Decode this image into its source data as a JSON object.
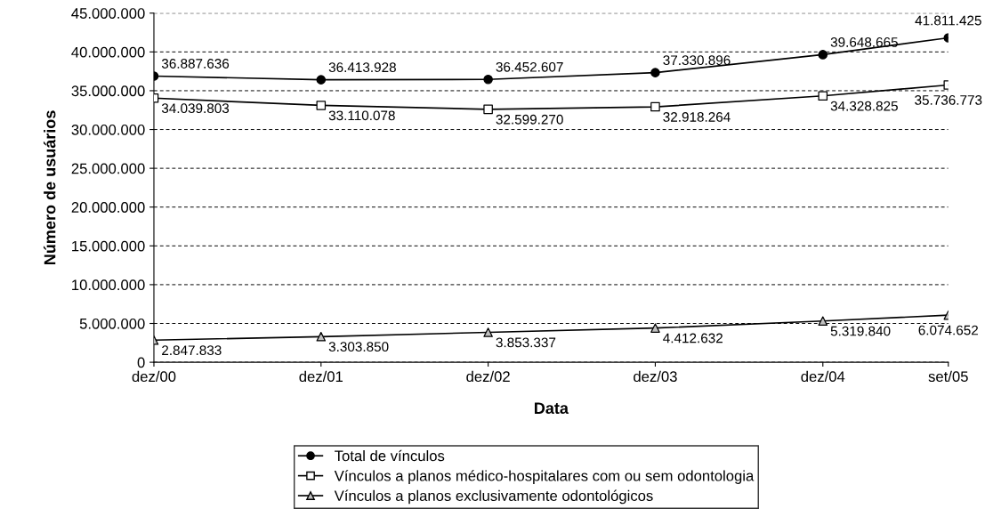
{
  "chart_data": {
    "type": "line",
    "xlabel": "Data",
    "ylabel": "Número de usuários",
    "x": [
      "2000-12",
      "2001-12",
      "2002-12",
      "2003-12",
      "2004-12",
      "2005-09"
    ],
    "xlim": [
      "2000-12",
      "2005-09"
    ],
    "xticks": [
      {
        "value": "2000-12",
        "label": "dez/00"
      },
      {
        "value": "2001-12",
        "label": "dez/01"
      },
      {
        "value": "2002-12",
        "label": "dez/02"
      },
      {
        "value": "2003-12",
        "label": "dez/03"
      },
      {
        "value": "2004-12",
        "label": "dez/04"
      },
      {
        "value": "2005-09",
        "label": "set/05"
      }
    ],
    "ylim": [
      0,
      45000000
    ],
    "yticks": [
      0,
      {
        "value": 5000000,
        "label": "5.000.000"
      },
      {
        "value": 10000000,
        "label": "10.000.000"
      },
      {
        "value": 15000000,
        "label": "15.000.000"
      },
      {
        "value": 20000000,
        "label": "20.000.000"
      },
      {
        "value": 25000000,
        "label": "25.000.000"
      },
      {
        "value": 30000000,
        "label": "30.000.000"
      },
      {
        "value": 35000000,
        "label": "35.000.000"
      },
      {
        "value": 40000000,
        "label": "40.000.000"
      },
      {
        "value": 45000000,
        "label": "45.000.000"
      }
    ],
    "grid": "y",
    "legend": "bottom",
    "series": [
      {
        "name": "Total de vínculos",
        "color": "#000000",
        "marker": "circle",
        "colors": [
          "#000000",
          "#000000",
          "#000000",
          "#000000",
          "#000000",
          "#000000"
        ],
        "values": [
          36887636,
          36413928,
          36452607,
          37330896,
          39648665,
          41811425
        ],
        "value_labels": [
          "36.887.636",
          "36.413.928",
          "36.452.607",
          "37.330.896",
          "39.648.665",
          "41.811.425"
        ]
      },
      {
        "name": "Vínculos a planos médico-hospitalares com ou sem odontologia",
        "color": "#000000",
        "marker": "square",
        "colors": [
          "#ffffff",
          "#ffffff",
          "#ffffff",
          "#ffffff",
          "#ffffff",
          "#ffffff"
        ],
        "values": [
          34039803,
          33110078,
          32599270,
          32918264,
          34328825,
          35736773
        ],
        "value_labels": [
          "34.039.803",
          "33.110.078",
          "32.599.270",
          "32.918.264",
          "34.328.825",
          "35.736.773"
        ]
      },
      {
        "name": "Vínculos a planos exclusivamente odontológicos",
        "color": "#000000",
        "marker": "triangle",
        "colors": [
          "#c0c0c0",
          "#c0c0c0",
          "#c0c0c0",
          "#c0c0c0",
          "#c0c0c0",
          "#c0c0c0"
        ],
        "values": [
          2847833,
          3303850,
          3853337,
          4412632,
          5319840,
          6074652
        ],
        "value_labels": [
          "2.847.833",
          "3.303.850",
          "3.853.337",
          "4.412.632",
          "5.319.840",
          "6.074.652"
        ]
      }
    ]
  }
}
